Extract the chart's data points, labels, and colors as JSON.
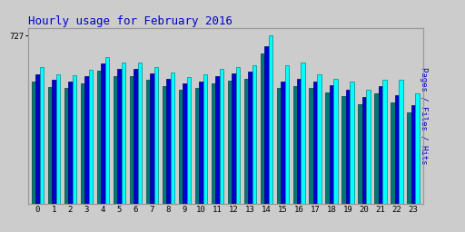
{
  "title": "Hourly usage for February 2016",
  "title_color": "#0000CC",
  "title_fontsize": 9,
  "background_color": "#CCCCCC",
  "plot_bg_color": "#CCCCCC",
  "ylabel_right": "Pages / Files / Hits",
  "ytick_label": "727",
  "hours": [
    0,
    1,
    2,
    3,
    4,
    5,
    6,
    7,
    8,
    9,
    10,
    11,
    12,
    13,
    14,
    15,
    16,
    17,
    18,
    19,
    20,
    21,
    22,
    23
  ],
  "hits": [
    590,
    560,
    555,
    578,
    635,
    610,
    610,
    592,
    568,
    548,
    558,
    582,
    592,
    598,
    727,
    598,
    612,
    558,
    542,
    528,
    492,
    538,
    538,
    478
  ],
  "files": [
    560,
    535,
    530,
    550,
    605,
    582,
    582,
    565,
    540,
    522,
    530,
    552,
    562,
    572,
    680,
    530,
    540,
    530,
    512,
    495,
    462,
    508,
    468,
    425
  ],
  "pages": [
    530,
    505,
    500,
    520,
    575,
    552,
    552,
    535,
    510,
    492,
    500,
    522,
    532,
    542,
    650,
    500,
    510,
    500,
    482,
    465,
    432,
    478,
    438,
    395
  ],
  "color_hits": "#00FFFF",
  "color_files": "#0000CC",
  "color_pages": "#007777",
  "edge_hits": "#008888",
  "edge_files": "#000088",
  "edge_pages": "#004444",
  "bar_width": 0.25,
  "ylim": [
    0,
    760
  ],
  "font_family": "monospace"
}
